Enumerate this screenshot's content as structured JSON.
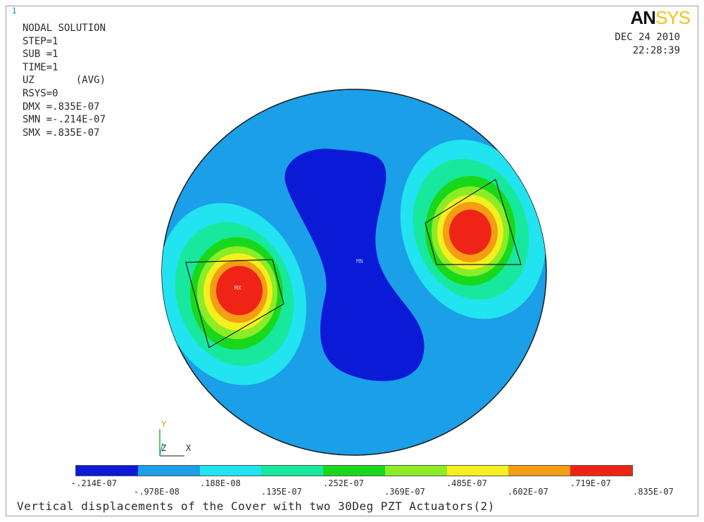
{
  "window_number": "1",
  "logo": {
    "an": "AN",
    "sys": "SYS"
  },
  "info_lines": [
    "NODAL SOLUTION",
    "",
    "STEP=1",
    "SUB =1",
    "TIME=1",
    "UZ       (AVG)",
    "RSYS=0",
    "DMX =.835E-07",
    "SMN =-.214E-07",
    "SMX =.835E-07"
  ],
  "date": "DEC 24 2010",
  "time": "22:28:39",
  "plot_labels": {
    "min": "MN",
    "max": "MX"
  },
  "triad": {
    "y": "Y",
    "z": "Z",
    "x": "X"
  },
  "legend": {
    "colors": [
      "#0a1ad6",
      "#1c9fe8",
      "#22e3f0",
      "#18e89e",
      "#19d81b",
      "#8cec26",
      "#f4f01e",
      "#f59d14",
      "#f02416"
    ],
    "ticks_lower": [
      "-.214E-07",
      ".188E-08",
      ".252E-07",
      ".485E-07",
      ".719E-07"
    ],
    "ticks_upper": [
      "-.978E-08",
      ".135E-07",
      ".369E-07",
      ".602E-07",
      ".835E-07"
    ]
  },
  "caption": "Vertical displacements of the Cover with two 30Deg PZT Actuators(2)",
  "colors": {
    "background_disc": "#1a9fe8",
    "disc_outline": "#1a1a1a",
    "min_region": "#0a1ad6",
    "accent_logo": "#f2c21a",
    "window_number": "#1e8fd0"
  }
}
